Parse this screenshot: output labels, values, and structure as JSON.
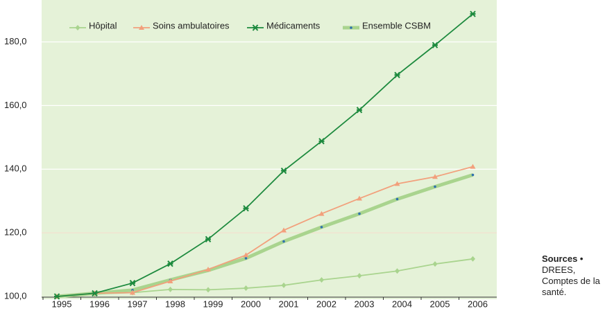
{
  "chart_data": {
    "type": "line",
    "categories": [
      "1995",
      "1996",
      "1997",
      "1998",
      "1999",
      "2000",
      "2001",
      "2002",
      "2003",
      "2004",
      "2005",
      "2006"
    ],
    "series": [
      {
        "name": "Hôpital",
        "color": "#a9d48e",
        "marker": "diamond",
        "values": [
          100,
          100.8,
          101.2,
          102.2,
          102.1,
          102.6,
          103.5,
          105.2,
          106.5,
          108,
          110.2,
          111.8
        ]
      },
      {
        "name": "Soins ambulatoires",
        "color": "#f2a07c",
        "marker": "triangle",
        "values": [
          100,
          101,
          101.2,
          104.8,
          108.5,
          113,
          120.8,
          126,
          130.8,
          135.4,
          137.6,
          140.8
        ]
      },
      {
        "name": "Médicaments",
        "color": "#1d8a3e",
        "marker": "star",
        "values": [
          100,
          101,
          104.2,
          110.3,
          118,
          127.7,
          139.5,
          148.8,
          158.6,
          169.6,
          179,
          188.8
        ]
      },
      {
        "name": "Ensemble CSBM",
        "color": "#a9d48e",
        "marker": "dot",
        "values": [
          100,
          101,
          102,
          105.2,
          108.2,
          112,
          117.3,
          121.8,
          126,
          130.6,
          134.5,
          138.2
        ]
      }
    ],
    "ylim": [
      100,
      191
    ],
    "yticks": [
      {
        "value": 100,
        "label": "100,0"
      },
      {
        "value": 120,
        "label": "120,0"
      },
      {
        "value": 140,
        "label": "140,0"
      },
      {
        "value": 160,
        "label": "160,0"
      },
      {
        "value": 180,
        "label": "180,0"
      }
    ],
    "grid": true
  },
  "source": {
    "label": "Sources •",
    "text": "DREES, Comptes de la santé."
  }
}
